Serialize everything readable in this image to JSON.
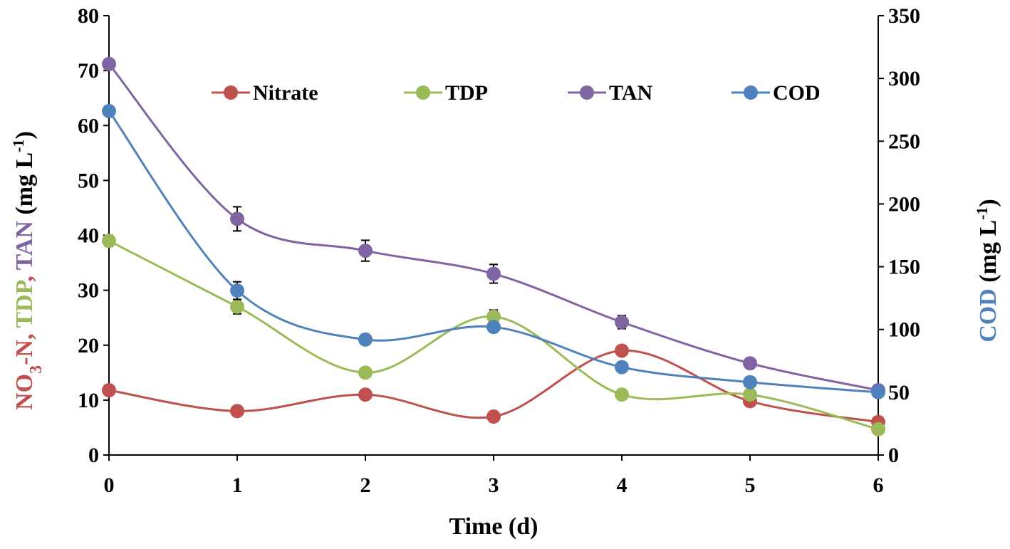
{
  "chart_data": {
    "type": "line",
    "title": "",
    "xlabel": "Time (d)",
    "x": [
      0,
      1,
      2,
      3,
      4,
      5,
      6
    ],
    "xlim": [
      0,
      6
    ],
    "x_ticks": [
      "0",
      "1",
      "2",
      "3",
      "4",
      "5",
      "6"
    ],
    "ylabel_left_parts": [
      {
        "text": "NO",
        "color": "#c0504d"
      },
      {
        "text": "3",
        "color": "#c0504d",
        "sub": true
      },
      {
        "text": "-N, ",
        "color": "#c0504d"
      },
      {
        "text": "TDP",
        "color": "#9bbb59"
      },
      {
        "text": ", ",
        "color": "#c0504d"
      },
      {
        "text": "TAN",
        "color": "#8064a2"
      },
      {
        "text": " (mg L",
        "color": "#000000"
      },
      {
        "text": "-1",
        "color": "#000000",
        "sup": true
      },
      {
        "text": ")",
        "color": "#000000"
      }
    ],
    "ylabel_right_parts": [
      {
        "text": "COD",
        "color": "#4f81bd"
      },
      {
        "text": " (mg L",
        "color": "#000000"
      },
      {
        "text": "-1",
        "color": "#000000",
        "sup": true
      },
      {
        "text": ")",
        "color": "#000000"
      }
    ],
    "ylim_left": [
      0,
      80
    ],
    "y_ticks_left": [
      "0",
      "10",
      "20",
      "30",
      "40",
      "50",
      "60",
      "70",
      "80"
    ],
    "ylim_right": [
      0,
      350
    ],
    "y_ticks_right": [
      "0",
      "50",
      "100",
      "150",
      "200",
      "250",
      "300",
      "350"
    ],
    "legend_position": "top",
    "series": [
      {
        "name": "Nitrate",
        "axis": "left",
        "color": "#c0504d",
        "values": [
          11.8,
          8.0,
          11.0,
          7.0,
          19.0,
          9.8,
          6.0
        ],
        "errors": [
          0,
          0,
          0,
          0,
          0.8,
          0,
          0
        ]
      },
      {
        "name": "TDP",
        "axis": "left",
        "color": "#9bbb59",
        "values": [
          39.0,
          27.0,
          15.0,
          25.2,
          11.0,
          11.0,
          4.7
        ],
        "errors": [
          1.0,
          1.3,
          0,
          1.2,
          0,
          0,
          0
        ]
      },
      {
        "name": "TAN",
        "axis": "left",
        "color": "#8064a2",
        "values": [
          71.2,
          43.0,
          37.2,
          33.0,
          24.2,
          16.7,
          11.8
        ],
        "errors": [
          0,
          2.2,
          1.9,
          1.7,
          1.2,
          0,
          0
        ]
      },
      {
        "name": "COD",
        "axis": "right",
        "color": "#4f81bd",
        "values": [
          274,
          131,
          92,
          102,
          70,
          58,
          50
        ],
        "errors": [
          0,
          7,
          4,
          4,
          0,
          0,
          0
        ]
      }
    ]
  }
}
